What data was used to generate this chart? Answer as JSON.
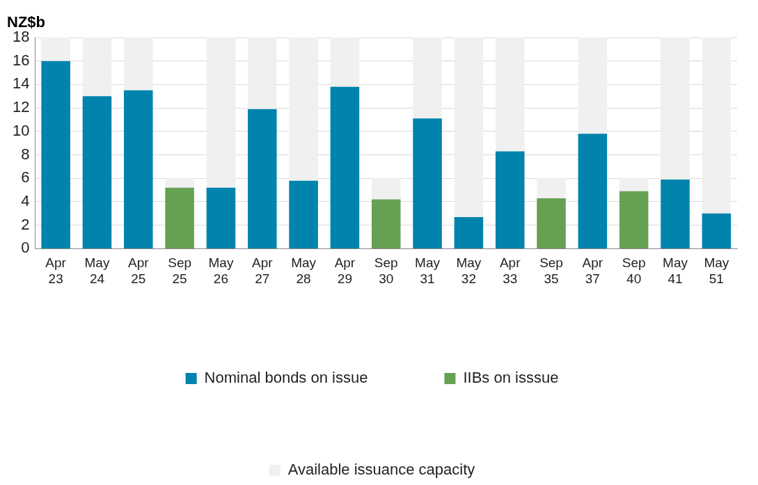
{
  "chart_data": {
    "type": "bar",
    "stacked": true,
    "ylabel": "NZ$b",
    "categories": [
      "Apr 23",
      "May 24",
      "Apr 25",
      "Sep 25",
      "May 26",
      "Apr 27",
      "May 28",
      "Apr 29",
      "Sep 30",
      "May 31",
      "May 32",
      "Apr 33",
      "Sep 35",
      "Apr 37",
      "Sep 40",
      "May 41",
      "May 51"
    ],
    "series": [
      {
        "name": "Nominal bonds on issue",
        "color": "#0083ad",
        "values": [
          16,
          13,
          13.5,
          null,
          5.2,
          11.9,
          5.8,
          13.8,
          null,
          11.1,
          2.7,
          8.3,
          null,
          9.8,
          null,
          5.9,
          3.0
        ]
      },
      {
        "name": "IIBs on isssue",
        "color": "#66a153",
        "values": [
          null,
          null,
          null,
          5.2,
          null,
          null,
          null,
          null,
          4.2,
          null,
          null,
          null,
          4.3,
          null,
          4.9,
          null,
          null
        ]
      },
      {
        "name": "Available issuance capacity",
        "color": "#f0f0f0",
        "values": [
          2,
          5,
          4.5,
          0.8,
          12.8,
          6.1,
          12.2,
          4.2,
          1.8,
          6.9,
          15.3,
          9.7,
          1.7,
          8.2,
          1.1,
          12.1,
          15
        ]
      }
    ],
    "ylim": [
      0,
      18
    ],
    "yticks": [
      0,
      2,
      4,
      6,
      8,
      10,
      12,
      14,
      16,
      18
    ],
    "grid": "y",
    "legend": "bottom"
  }
}
